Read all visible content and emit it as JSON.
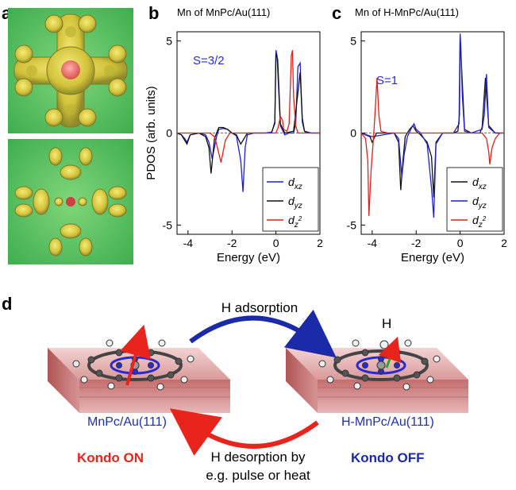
{
  "labels": {
    "a": "a",
    "b": "b",
    "c": "c",
    "d": "d"
  },
  "chart_data": [
    {
      "type": "line",
      "title": "Mn of MnPc/Au(111)",
      "annotation": "S=3/2",
      "xlabel": "Energy (eV)",
      "ylabel": "PDOS  (arb. units)",
      "xlim": [
        -4.5,
        2
      ],
      "ylim": [
        -5.5,
        5.5
      ],
      "xticks": [
        -4,
        -2,
        0,
        2
      ],
      "yticks": [
        5,
        0,
        -5
      ],
      "xtick_labels": [
        "-4",
        "-2",
        "0",
        "2"
      ],
      "ytick_labels": [
        "5",
        "0",
        "-5"
      ],
      "legend_position": "bottom-right",
      "legend": [
        {
          "base": "d",
          "sub": "xz",
          "sup": "",
          "color": "#1f1fcc"
        },
        {
          "base": "d",
          "sub": "yz",
          "sup": "",
          "color": "#111111"
        },
        {
          "base": "d",
          "sub": "z",
          "sup": "2",
          "color": "#e0201a"
        }
      ],
      "series": [
        {
          "color": "#1f1fcc",
          "x": [
            -4.5,
            -4.3,
            -4.15,
            -4.05,
            -3.9,
            -3.5,
            -3.2,
            -3.05,
            -2.9,
            -2.7,
            -2.6,
            -2.4,
            -2.2,
            -2.0,
            -1.8,
            -1.6,
            -1.5,
            -1.4,
            -1.3,
            -1.0,
            -0.5,
            -0.2,
            -0.05,
            0.0,
            0.05,
            0.2,
            0.4,
            0.6,
            0.8,
            0.9,
            1.0,
            1.1,
            1.2,
            1.3,
            1.4,
            1.6,
            2.0
          ],
          "y": [
            0,
            -0.1,
            -0.3,
            -0.5,
            -0.1,
            0,
            -0.1,
            -0.5,
            -1.4,
            -0.2,
            0.2,
            0.25,
            0.2,
            0,
            -0.15,
            -1.5,
            -3.2,
            -0.8,
            -0.1,
            0,
            0,
            0.05,
            0.5,
            4.5,
            4.2,
            0.4,
            -0.1,
            0,
            0,
            0.5,
            3.6,
            3.8,
            0.6,
            0.1,
            0,
            0,
            0
          ]
        },
        {
          "color": "#111111",
          "x": [
            -4.5,
            -4.3,
            -4.15,
            -4.05,
            -3.9,
            -3.5,
            -3.2,
            -3.05,
            -2.95,
            -2.8,
            -2.6,
            -2.4,
            -2.2,
            -2.0,
            -1.8,
            -1.6,
            -1.45,
            -1.3,
            -1.0,
            -0.5,
            -0.2,
            -0.05,
            0.0,
            0.08,
            0.2,
            0.4,
            0.8,
            1.0,
            1.1,
            1.2,
            1.3,
            1.6,
            2.0
          ],
          "y": [
            0,
            -0.1,
            -0.4,
            -0.6,
            -0.1,
            0,
            -0.2,
            -0.8,
            -2.2,
            -0.3,
            0.3,
            0.3,
            0.2,
            0,
            -0.1,
            -0.6,
            -0.3,
            0,
            0,
            0,
            0,
            0.6,
            4.3,
            4.0,
            0.5,
            0,
            0.1,
            2.2,
            3.3,
            0.8,
            0.1,
            0,
            0
          ]
        },
        {
          "color": "#e0201a",
          "x": [
            -4.5,
            -4.0,
            -3.5,
            -3.0,
            -2.8,
            -2.7,
            -2.6,
            -2.5,
            -2.3,
            -2.1,
            -2.0,
            -1.5,
            -1.0,
            -0.5,
            0.0,
            0.1,
            0.2,
            0.3,
            0.35,
            0.5,
            0.6,
            0.7,
            0.75,
            0.8,
            0.9,
            1.0,
            1.2,
            1.5,
            2.0
          ],
          "y": [
            0,
            0,
            0,
            0,
            -0.2,
            -0.6,
            -1.1,
            -1.6,
            -0.4,
            0,
            0,
            0,
            0,
            0,
            0,
            0.3,
            0.9,
            0.7,
            0.2,
            0.1,
            0.5,
            4.2,
            4.5,
            2.0,
            0.4,
            0,
            0,
            0,
            0
          ]
        }
      ]
    },
    {
      "type": "line",
      "title": "Mn of H-MnPc/Au(111)",
      "annotation": "S=1",
      "xlabel": "Energy (eV)",
      "ylabel": "",
      "xlim": [
        -4.5,
        2
      ],
      "ylim": [
        -5.5,
        5.5
      ],
      "xticks": [
        -4,
        -2,
        0,
        2
      ],
      "yticks": [
        5,
        0,
        -5
      ],
      "xtick_labels": [
        "-4",
        "-2",
        "0",
        "2"
      ],
      "ytick_labels": [
        "5",
        "0",
        "-5"
      ],
      "legend_position": "bottom-right",
      "legend": [
        {
          "base": "d",
          "sub": "xz",
          "sup": "",
          "color": "#111111"
        },
        {
          "base": "d",
          "sub": "yz",
          "sup": "",
          "color": "#1f1fcc"
        },
        {
          "base": "d",
          "sub": "z",
          "sup": "2",
          "color": "#e0201a"
        }
      ],
      "series": [
        {
          "color": "#111111",
          "x": [
            -4.5,
            -4.1,
            -4.0,
            -3.8,
            -3.0,
            -2.8,
            -2.7,
            -2.6,
            -2.5,
            -2.3,
            -2.15,
            -2.0,
            -1.8,
            -1.5,
            -1.3,
            -1.2,
            -1.1,
            -0.8,
            -0.3,
            -0.1,
            -0.03,
            0.0,
            0.05,
            0.2,
            0.5,
            0.9,
            1.0,
            1.15,
            1.3,
            1.6,
            2.0
          ],
          "y": [
            0,
            -0.2,
            -0.5,
            0,
            0,
            -0.5,
            -3.1,
            -1.5,
            -0.2,
            0.2,
            0.4,
            0.1,
            -0.1,
            -0.5,
            -1.3,
            -3.5,
            -0.5,
            0,
            0,
            0.1,
            1.0,
            5.2,
            4.0,
            0.2,
            0,
            0,
            0.3,
            3.0,
            0.4,
            0,
            0
          ]
        },
        {
          "color": "#1f1fcc",
          "x": [
            -4.5,
            -4.0,
            -3.0,
            -2.8,
            -2.65,
            -2.55,
            -2.4,
            -2.2,
            -2.1,
            -2.0,
            -1.8,
            -1.5,
            -1.3,
            -1.2,
            -1.1,
            -0.8,
            -0.3,
            -0.05,
            0.0,
            0.03,
            0.1,
            0.2,
            0.5,
            1.0,
            1.1,
            1.2,
            1.3,
            1.6,
            2.0
          ],
          "y": [
            0,
            -0.2,
            0,
            -0.3,
            -2.4,
            -1.2,
            -0.2,
            0.3,
            0.5,
            0.2,
            0,
            -0.6,
            -3.0,
            -4.6,
            -0.6,
            0,
            0,
            0.5,
            5.4,
            4.8,
            2.0,
            0.1,
            0,
            0.2,
            1.0,
            3.2,
            0.3,
            0,
            0
          ]
        },
        {
          "color": "#e0201a",
          "x": [
            -4.5,
            -4.3,
            -4.2,
            -4.15,
            -4.05,
            -3.95,
            -3.9,
            -3.85,
            -3.78,
            -3.7,
            -3.6,
            -3.3,
            -3.0,
            -2.5,
            -2.0,
            -1.5,
            -1.0,
            -0.5,
            0.0,
            0.5,
            1.0,
            1.2,
            1.3,
            1.35,
            1.45,
            1.6,
            1.8,
            2.0
          ],
          "y": [
            0,
            -0.3,
            -1.5,
            -4.5,
            -2.0,
            -0.4,
            0.5,
            1.5,
            3.0,
            1.0,
            0.1,
            0,
            0,
            0,
            0,
            0,
            0,
            0,
            0,
            0,
            0,
            -0.3,
            -1.0,
            -1.7,
            -0.8,
            -0.3,
            0,
            0
          ]
        }
      ]
    }
  ],
  "scheme": {
    "top_arrow_label": "H adsorption",
    "h_label": "H",
    "left_substrate_label": "MnPc/Au(111)",
    "right_substrate_label": "H-MnPc/Au(111)",
    "kondo_on": "Kondo ON",
    "kondo_off": "Kondo OFF",
    "bottom_arrow_line1": "H desorption by",
    "bottom_arrow_line2": "e.g. pulse or heat",
    "colors": {
      "blue_arrow": "#1a2aa8",
      "red_arrow": "#e8241c",
      "substrate": "#c98585"
    }
  }
}
